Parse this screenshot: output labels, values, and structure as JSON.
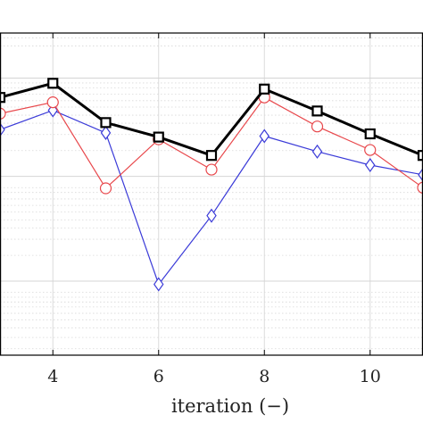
{
  "chart_data": {
    "type": "line",
    "title": "",
    "xlabel": "iteration (−)",
    "ylabel": "",
    "xlim": [
      3.0,
      11.0
    ],
    "ylim": [
      0,
      1
    ],
    "x_ticks": [
      4,
      6,
      8,
      10
    ],
    "x_tick_labels": [
      "4",
      "6",
      "8",
      "10"
    ],
    "y_scale": "log",
    "grid": true,
    "legend": "none",
    "series": [
      {
        "color": "#000000",
        "marker": "square",
        "x": [
          3,
          4,
          5,
          6,
          7,
          8,
          9,
          10,
          11
        ],
        "y": [
          0.8,
          0.844,
          0.722,
          0.677,
          0.62,
          0.826,
          0.758,
          0.687,
          0.62
        ]
      },
      {
        "color": "#e8474b",
        "marker": "circle",
        "x": [
          3,
          4,
          5,
          6,
          7,
          8,
          9,
          10,
          11
        ],
        "y": [
          0.75,
          0.785,
          0.518,
          0.67,
          0.576,
          0.8,
          0.71,
          0.637,
          0.52
        ]
      },
      {
        "color": "#3b3bd8",
        "marker": "diamond",
        "x": [
          3,
          4,
          5,
          6,
          7,
          8,
          9,
          10,
          11
        ],
        "y": [
          0.7,
          0.76,
          0.69,
          0.22,
          0.433,
          0.68,
          0.632,
          0.59,
          0.56
        ]
      }
    ]
  }
}
